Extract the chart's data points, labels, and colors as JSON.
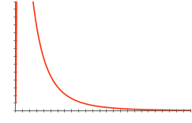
{
  "line_color": "#ff3311",
  "line_width": 1.2,
  "background_color": "#ffffff",
  "mu": -1.0,
  "sigma": 1.0,
  "x_start": 0.01,
  "x_end": 5.0,
  "num_points": 1000,
  "xlim": [
    0,
    5.0
  ],
  "ylim": [
    0,
    0.75
  ],
  "spine_color": "#666666",
  "x_major_ticks": 25,
  "y_major_ticks": 14
}
